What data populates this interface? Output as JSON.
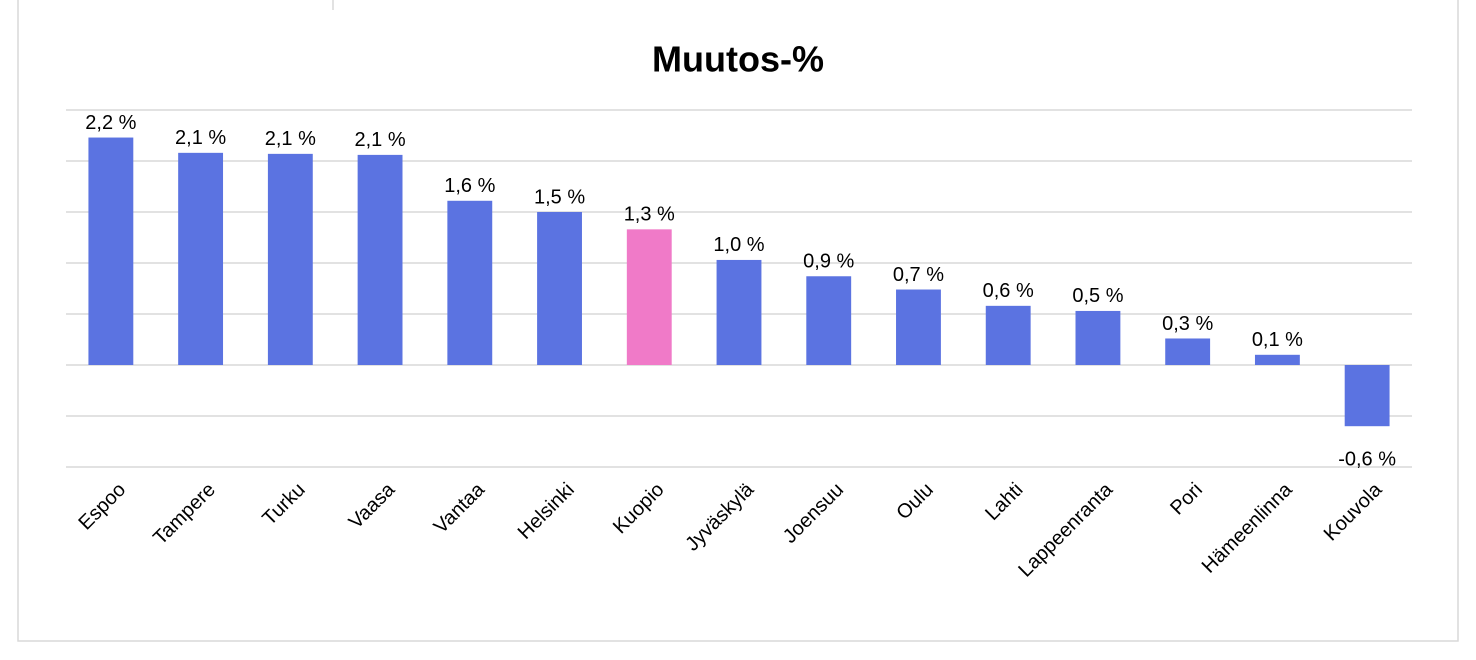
{
  "chart_data": {
    "type": "bar",
    "title": "Muutos-%",
    "categories": [
      "Espoo",
      "Tampere",
      "Turku",
      "Vaasa",
      "Vantaa",
      "Helsinki",
      "Kuopio",
      "Jyväskylä",
      "Joensuu",
      "Oulu",
      "Lahti",
      "Lappeenranta",
      "Pori",
      "Hämeenlinna",
      "Kouvola"
    ],
    "values": [
      2.23,
      2.08,
      2.07,
      2.06,
      1.61,
      1.5,
      1.33,
      1.03,
      0.87,
      0.74,
      0.58,
      0.53,
      0.26,
      0.1,
      -0.6
    ],
    "value_labels": [
      "2,2 %",
      "2,1 %",
      "2,1 %",
      "2,1 %",
      "1,6 %",
      "1,5 %",
      "1,3 %",
      "1,0 %",
      "0,9 %",
      "0,7 %",
      "0,6 %",
      "0,5 %",
      "0,3 %",
      "0,1 %",
      "-0,6 %"
    ],
    "colors": [
      "#5b73e1",
      "#5b73e1",
      "#5b73e1",
      "#5b73e1",
      "#5b73e1",
      "#5b73e1",
      "#f07ac8",
      "#5b73e1",
      "#5b73e1",
      "#5b73e1",
      "#5b73e1",
      "#5b73e1",
      "#5b73e1",
      "#5b73e1",
      "#5b73e1"
    ],
    "ylim": [
      -1,
      2.5
    ],
    "yticks": [
      -1,
      -0.5,
      0,
      0.5,
      1,
      1.5,
      2,
      2.5
    ],
    "grid": true,
    "show_tick_labels": false
  }
}
